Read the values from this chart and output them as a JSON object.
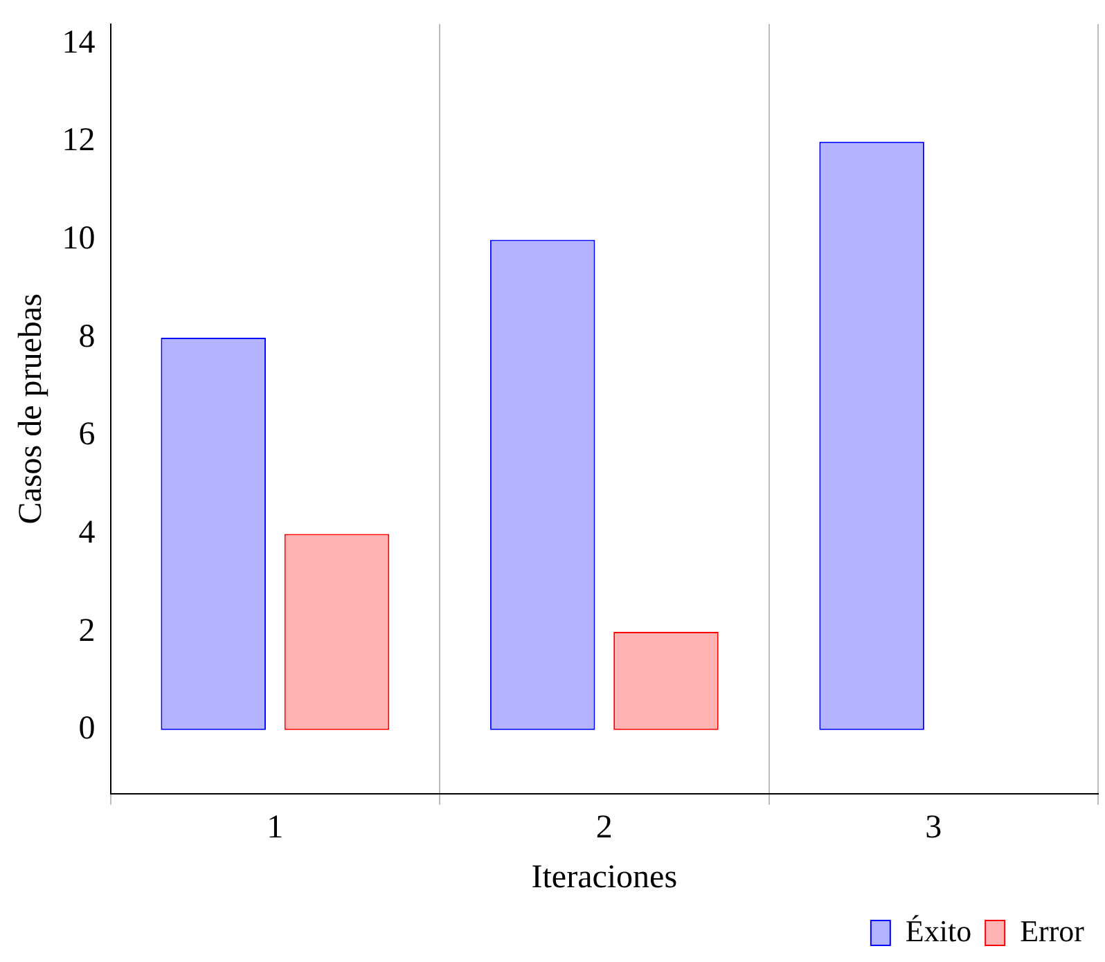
{
  "chart_data": {
    "type": "bar",
    "xlabel": "Iteraciones",
    "ylabel": "Casos de pruebas",
    "categories": [
      "1",
      "2",
      "3"
    ],
    "series": [
      {
        "name": "Éxito",
        "color": "#b3b3ff",
        "values": [
          8,
          10,
          12
        ]
      },
      {
        "name": "Error",
        "color": "#ffb3b3",
        "values": [
          4,
          2,
          0
        ]
      }
    ],
    "ylim": [
      -1.3,
      14.4
    ],
    "yticks": [
      0,
      2,
      4,
      6,
      8,
      10,
      12,
      14
    ],
    "grid": "x",
    "legend": "bottom right"
  }
}
